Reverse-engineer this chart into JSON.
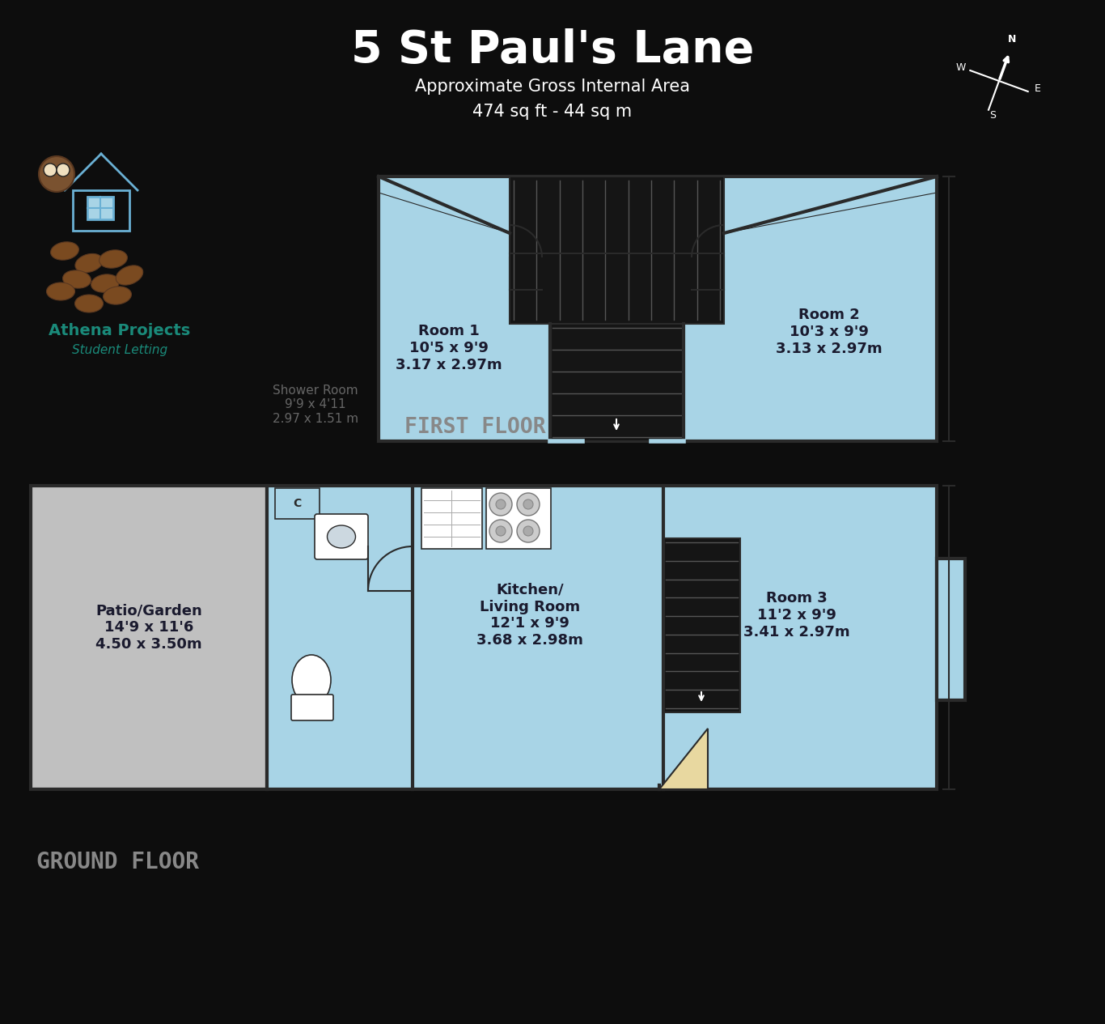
{
  "title": "5 St Paul's Lane",
  "subtitle1": "Approximate Gross Internal Area",
  "subtitle2": "474 sq ft - 44 sq m",
  "bg_color": "#0d0d0d",
  "floor_color": "#a8d4e6",
  "wall_color": "#2a2a2a",
  "garden_color": "#c0c0c0",
  "room_label_color": "#1a1a2e",
  "first_floor_label": "FIRST FLOOR",
  "ground_floor_label": "GROUND FLOOR",
  "shower_label": "Shower Room\n9'9 x 4'11\n2.97 x 1.51 m",
  "room1_label": "Room 1\n10'5 x 9'9\n3.17 x 2.97m",
  "room2_label": "Room 2\n10'3 x 9'9\n3.13 x 2.97m",
  "kitchen_label": "Kitchen/\nLiving Room\n12'1 x 9'9\n3.68 x 2.98m",
  "room3_label": "Room 3\n11'2 x 9'9\n3.41 x 2.97m",
  "garden_label": "Patio/Garden\n14'9 x 11'6\n4.50 x 3.50m"
}
